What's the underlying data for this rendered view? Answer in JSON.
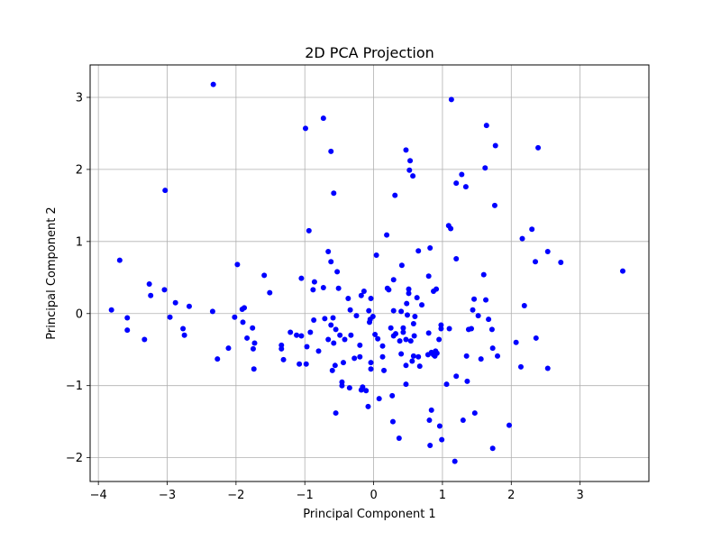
{
  "chart_data": {
    "type": "scatter",
    "title": "2D PCA Projection",
    "xlabel": "Principal Component 1",
    "ylabel": "Principal Component 2",
    "xlim": [
      -4.12,
      4.0
    ],
    "ylim": [
      -2.33,
      3.45
    ],
    "grid": true,
    "marker_color": "#0000ff",
    "x_ticks": [
      -4,
      -3,
      -2,
      -1,
      0,
      1,
      2,
      3
    ],
    "x_tick_labels": [
      "−4",
      "−3",
      "−2",
      "−1",
      "0",
      "1",
      "2",
      "3"
    ],
    "y_ticks": [
      -2,
      -1,
      0,
      1,
      2,
      3
    ],
    "y_tick_labels": [
      "−2",
      "−1",
      "0",
      "1",
      "2",
      "3"
    ],
    "points": [
      [
        -2.33,
        3.18
      ],
      [
        1.13,
        2.97
      ],
      [
        -0.73,
        2.71
      ],
      [
        -0.99,
        2.57
      ],
      [
        1.64,
        2.61
      ],
      [
        0.47,
        2.27
      ],
      [
        1.77,
        2.33
      ],
      [
        2.39,
        2.3
      ],
      [
        -0.62,
        2.25
      ],
      [
        0.53,
        2.12
      ],
      [
        0.52,
        1.99
      ],
      [
        0.57,
        1.91
      ],
      [
        1.62,
        2.02
      ],
      [
        1.28,
        1.93
      ],
      [
        1.2,
        1.81
      ],
      [
        1.34,
        1.76
      ],
      [
        -3.03,
        1.71
      ],
      [
        -0.58,
        1.67
      ],
      [
        0.31,
        1.64
      ],
      [
        1.76,
        1.5
      ],
      [
        1.09,
        1.22
      ],
      [
        1.12,
        1.18
      ],
      [
        -0.94,
        1.15
      ],
      [
        0.19,
        1.09
      ],
      [
        2.16,
        1.04
      ],
      [
        2.3,
        1.17
      ],
      [
        0.82,
        0.91
      ],
      [
        0.65,
        0.87
      ],
      [
        -0.66,
        0.86
      ],
      [
        2.53,
        0.86
      ],
      [
        0.04,
        0.81
      ],
      [
        1.2,
        0.76
      ],
      [
        -3.69,
        0.74
      ],
      [
        -0.62,
        0.72
      ],
      [
        2.35,
        0.72
      ],
      [
        2.72,
        0.71
      ],
      [
        -1.98,
        0.68
      ],
      [
        0.41,
        0.67
      ],
      [
        3.62,
        0.59
      ],
      [
        -0.53,
        0.58
      ],
      [
        1.6,
        0.54
      ],
      [
        -1.59,
        0.53
      ],
      [
        -1.05,
        0.49
      ],
      [
        0.29,
        0.47
      ],
      [
        0.8,
        0.52
      ],
      [
        -0.86,
        0.44
      ],
      [
        -3.26,
        0.41
      ],
      [
        -0.73,
        0.36
      ],
      [
        0.2,
        0.35
      ],
      [
        0.91,
        0.34
      ],
      [
        -0.88,
        0.33
      ],
      [
        -0.51,
        0.35
      ],
      [
        0.22,
        0.33
      ],
      [
        0.51,
        0.34
      ],
      [
        -3.04,
        0.33
      ],
      [
        -0.14,
        0.31
      ],
      [
        0.51,
        0.28
      ],
      [
        0.87,
        0.31
      ],
      [
        -1.51,
        0.29
      ],
      [
        -0.18,
        0.25
      ],
      [
        -3.24,
        0.25
      ],
      [
        -0.37,
        0.21
      ],
      [
        -0.04,
        0.21
      ],
      [
        0.63,
        0.22
      ],
      [
        1.46,
        0.2
      ],
      [
        1.63,
        0.19
      ],
      [
        -2.88,
        0.15
      ],
      [
        0.7,
        0.12
      ],
      [
        0.48,
        0.14
      ],
      [
        -2.68,
        0.1
      ],
      [
        2.19,
        0.11
      ],
      [
        -1.88,
        0.08
      ],
      [
        -1.91,
        0.06
      ],
      [
        -0.34,
        0.05
      ],
      [
        1.44,
        0.05
      ],
      [
        -2.34,
        0.03
      ],
      [
        0.29,
        0.04
      ],
      [
        -3.81,
        0.05
      ],
      [
        -0.07,
        0.04
      ],
      [
        0.4,
        0.03
      ],
      [
        -0.25,
        -0.03
      ],
      [
        0.49,
        -0.02
      ],
      [
        -0.01,
        -0.04
      ],
      [
        0.6,
        -0.04
      ],
      [
        1.52,
        -0.03
      ],
      [
        -2.96,
        -0.05
      ],
      [
        -2.02,
        -0.05
      ],
      [
        -0.59,
        -0.06
      ],
      [
        -0.05,
        -0.08
      ],
      [
        -3.58,
        -0.06
      ],
      [
        1.67,
        -0.08
      ],
      [
        -0.71,
        -0.07
      ],
      [
        -0.87,
        -0.09
      ],
      [
        -1.9,
        -0.12
      ],
      [
        -0.06,
        -0.12
      ],
      [
        0.58,
        -0.14
      ],
      [
        0.98,
        -0.16
      ],
      [
        0.25,
        -0.2
      ],
      [
        -0.62,
        -0.16
      ],
      [
        0.43,
        -0.2
      ],
      [
        -1.76,
        -0.2
      ],
      [
        -2.77,
        -0.21
      ],
      [
        1.42,
        -0.21
      ],
      [
        -0.55,
        -0.22
      ],
      [
        0.98,
        -0.21
      ],
      [
        0.43,
        -0.26
      ],
      [
        1.1,
        -0.21
      ],
      [
        0.32,
        -0.28
      ],
      [
        1.38,
        -0.22
      ],
      [
        1.72,
        -0.22
      ],
      [
        -3.58,
        -0.23
      ],
      [
        -1.21,
        -0.26
      ],
      [
        -0.49,
        -0.3
      ],
      [
        -0.33,
        -0.3
      ],
      [
        -1.05,
        -0.31
      ],
      [
        0.59,
        -0.31
      ],
      [
        -0.92,
        -0.26
      ],
      [
        0.8,
        -0.27
      ],
      [
        -1.12,
        -0.3
      ],
      [
        0.02,
        -0.29
      ],
      [
        0.29,
        -0.31
      ],
      [
        0.06,
        -0.35
      ],
      [
        0.47,
        -0.36
      ],
      [
        -1.84,
        -0.34
      ],
      [
        2.36,
        -0.34
      ],
      [
        0.95,
        -0.36
      ],
      [
        -3.33,
        -0.36
      ],
      [
        -0.66,
        -0.36
      ],
      [
        -0.42,
        -0.36
      ],
      [
        0.38,
        -0.38
      ],
      [
        0.54,
        -0.38
      ],
      [
        -2.75,
        -0.3
      ],
      [
        -1.73,
        -0.41
      ],
      [
        0.13,
        -0.45
      ],
      [
        -0.58,
        -0.41
      ],
      [
        -0.2,
        -0.44
      ],
      [
        -1.34,
        -0.44
      ],
      [
        2.07,
        -0.4
      ],
      [
        -0.97,
        -0.46
      ],
      [
        -2.11,
        -0.48
      ],
      [
        -1.34,
        -0.49
      ],
      [
        1.73,
        -0.48
      ],
      [
        -1.75,
        -0.49
      ],
      [
        -0.8,
        -0.52
      ],
      [
        0.4,
        -0.56
      ],
      [
        0.9,
        -0.52
      ],
      [
        0.85,
        -0.55
      ],
      [
        0.79,
        -0.57
      ],
      [
        1.8,
        -0.59
      ],
      [
        0.92,
        -0.55
      ],
      [
        0.84,
        -0.54
      ],
      [
        0.65,
        -0.6
      ],
      [
        1.35,
        -0.59
      ],
      [
        0.58,
        -0.59
      ],
      [
        -0.2,
        -0.6
      ],
      [
        -0.28,
        -0.62
      ],
      [
        0.87,
        -0.57
      ],
      [
        1.56,
        -0.63
      ],
      [
        0.89,
        -0.59
      ],
      [
        0.13,
        -0.6
      ],
      [
        -1.31,
        -0.64
      ],
      [
        -2.27,
        -0.63
      ],
      [
        0.56,
        -0.66
      ],
      [
        -0.44,
        -0.68
      ],
      [
        -0.04,
        -0.68
      ],
      [
        -0.98,
        -0.7
      ],
      [
        -1.08,
        -0.7
      ],
      [
        0.47,
        -0.72
      ],
      [
        -0.56,
        -0.72
      ],
      [
        0.67,
        -0.73
      ],
      [
        -1.74,
        -0.77
      ],
      [
        2.14,
        -0.74
      ],
      [
        2.53,
        -0.76
      ],
      [
        -0.04,
        -0.77
      ],
      [
        -0.6,
        -0.79
      ],
      [
        0.15,
        -0.79
      ],
      [
        1.2,
        -0.87
      ],
      [
        -0.46,
        -0.95
      ],
      [
        1.36,
        -0.94
      ],
      [
        0.47,
        -0.98
      ],
      [
        1.06,
        -0.98
      ],
      [
        -0.46,
        -1.0
      ],
      [
        -0.16,
        -1.02
      ],
      [
        -0.35,
        -1.03
      ],
      [
        -0.11,
        -1.07
      ],
      [
        -0.18,
        -1.06
      ],
      [
        0.27,
        -1.14
      ],
      [
        0.08,
        -1.18
      ],
      [
        -0.08,
        -1.29
      ],
      [
        -0.55,
        -1.38
      ],
      [
        1.47,
        -1.38
      ],
      [
        0.84,
        -1.34
      ],
      [
        1.97,
        -1.55
      ],
      [
        0.96,
        -1.56
      ],
      [
        0.28,
        -1.5
      ],
      [
        1.3,
        -1.48
      ],
      [
        0.81,
        -1.48
      ],
      [
        0.37,
        -1.73
      ],
      [
        0.99,
        -1.75
      ],
      [
        0.82,
        -1.83
      ],
      [
        1.73,
        -1.87
      ],
      [
        1.18,
        -2.05
      ]
    ]
  }
}
